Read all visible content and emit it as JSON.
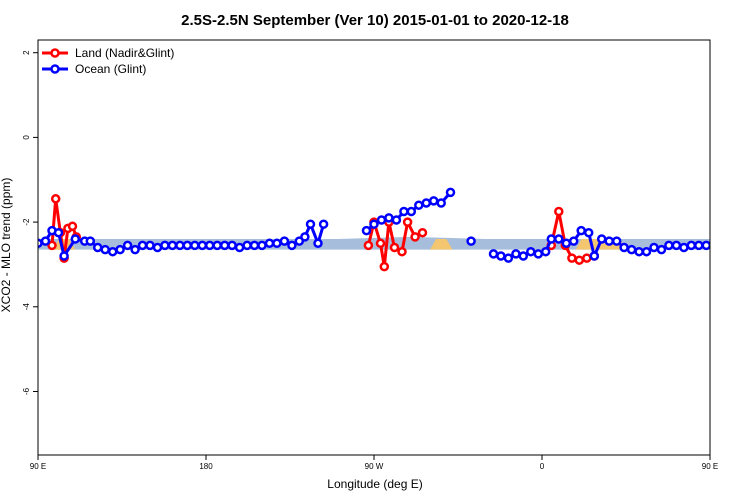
{
  "chart_data": {
    "type": "line",
    "title": "2.5S-2.5N September (Ver 10)   2015-01-01 to 2020-12-18",
    "xlabel": "Longitude (deg E)",
    "ylabel": "XCO2 - MLO trend (ppm)",
    "xlim": [
      90,
      450
    ],
    "ylim": [
      -7.5,
      2.3
    ],
    "x_ticks": [
      {
        "value": 90,
        "label": "90 E"
      },
      {
        "value": 180,
        "label": "180"
      },
      {
        "value": 270,
        "label": "90 W"
      },
      {
        "value": 360,
        "label": "0"
      },
      {
        "value": 450,
        "label": "90 E"
      },
      {
        "value": 540,
        "label": "180"
      }
    ],
    "y_ticks": [
      {
        "value": 2,
        "label": "2"
      },
      {
        "value": 0,
        "label": "0"
      },
      {
        "value": -2,
        "label": "-2"
      },
      {
        "value": -4,
        "label": "-4"
      },
      {
        "value": -6,
        "label": "-6"
      }
    ],
    "legend_position": "top-left",
    "band": {
      "name": "",
      "color": "#a6bddb",
      "points": [
        [
          90,
          -2.4,
          -2.65
        ],
        [
          100,
          -2.4,
          -2.65
        ],
        [
          150,
          -2.4,
          -2.65
        ],
        [
          200,
          -2.4,
          -2.65
        ],
        [
          250,
          -2.4,
          -2.65
        ],
        [
          290,
          -2.35,
          -2.65
        ],
        [
          330,
          -2.4,
          -2.65
        ],
        [
          360,
          -2.4,
          -2.65
        ],
        [
          400,
          -2.4,
          -2.65
        ],
        [
          450,
          -2.4,
          -2.65
        ],
        [
          500,
          -2.4,
          -2.65
        ],
        [
          540,
          -2.4,
          -2.65
        ]
      ]
    },
    "land_shading": {
      "color": "#f3c66f",
      "ranges": [
        [
          98,
          110
        ],
        [
          300,
          312
        ],
        [
          378,
          405
        ],
        [
          465,
          478
        ]
      ]
    },
    "series": [
      {
        "name": "Land (Nadir&Glint)",
        "color": "#ff0000",
        "segments": [
          [
            [
              97.5,
              -2.55
            ],
            [
              99.5,
              -1.45
            ],
            [
              102,
              -2.25
            ],
            [
              104,
              -2.85
            ],
            [
              106,
              -2.15
            ],
            [
              108.5,
              -2.1
            ],
            [
              110.5,
              -2.35
            ]
          ],
          [
            [
              267,
              -2.55
            ],
            [
              270,
              -2.0
            ],
            [
              273.5,
              -2.5
            ],
            [
              275.5,
              -3.05
            ],
            [
              278,
              -2.0
            ],
            [
              281,
              -2.6
            ],
            [
              285,
              -2.7
            ],
            [
              288,
              -2.0
            ],
            [
              292,
              -2.35
            ],
            [
              296,
              -2.25
            ]
          ],
          [
            [
              365,
              -2.55
            ],
            [
              369,
              -1.75
            ],
            [
              372.5,
              -2.55
            ],
            [
              376,
              -2.85
            ],
            [
              380,
              -2.9
            ],
            [
              384,
              -2.85
            ],
            [
              388,
              -2.8
            ]
          ],
          [
            [
              462,
              -2.5
            ],
            [
              464,
              -1.45
            ],
            [
              466.5,
              -2.25
            ],
            [
              468.5,
              -2.9
            ],
            [
              470.5,
              -2.15
            ],
            [
              473,
              -2.1
            ],
            [
              475,
              -2.35
            ]
          ]
        ]
      },
      {
        "name": "Ocean (Glint)",
        "color": "#0000ff",
        "segments": [
          [
            [
              90,
              -2.5
            ],
            [
              94,
              -2.45
            ],
            [
              97.5,
              -2.2
            ],
            [
              101,
              -2.25
            ],
            [
              104,
              -2.8
            ],
            [
              110,
              -2.4
            ],
            [
              115,
              -2.45
            ],
            [
              118,
              -2.45
            ],
            [
              122,
              -2.6
            ],
            [
              126,
              -2.65
            ],
            [
              130,
              -2.7
            ],
            [
              134,
              -2.65
            ],
            [
              138,
              -2.55
            ],
            [
              142,
              -2.65
            ],
            [
              146,
              -2.55
            ],
            [
              150,
              -2.55
            ],
            [
              154,
              -2.6
            ],
            [
              158,
              -2.55
            ],
            [
              162,
              -2.55
            ],
            [
              166,
              -2.55
            ],
            [
              170,
              -2.55
            ],
            [
              174,
              -2.55
            ],
            [
              178,
              -2.55
            ],
            [
              182,
              -2.55
            ],
            [
              186,
              -2.55
            ],
            [
              190,
              -2.55
            ],
            [
              194,
              -2.55
            ],
            [
              198,
              -2.6
            ],
            [
              202,
              -2.55
            ],
            [
              206,
              -2.55
            ],
            [
              210,
              -2.55
            ],
            [
              214,
              -2.5
            ],
            [
              218,
              -2.5
            ],
            [
              222,
              -2.45
            ],
            [
              226,
              -2.55
            ],
            [
              230,
              -2.45
            ],
            [
              233,
              -2.35
            ],
            [
              236,
              -2.05
            ],
            [
              240,
              -2.5
            ],
            [
              243,
              -2.05
            ]
          ],
          [
            [
              266,
              -2.2
            ],
            [
              270,
              -2.05
            ],
            [
              274,
              -1.95
            ],
            [
              278,
              -1.9
            ],
            [
              282,
              -1.95
            ],
            [
              286,
              -1.75
            ],
            [
              290,
              -1.75
            ],
            [
              294,
              -1.6
            ],
            [
              298,
              -1.55
            ],
            [
              302,
              -1.5
            ],
            [
              306,
              -1.55
            ],
            [
              311,
              -1.3
            ]
          ],
          [
            [
              322,
              -2.45
            ]
          ],
          [
            [
              334,
              -2.75
            ],
            [
              338,
              -2.8
            ],
            [
              342,
              -2.85
            ],
            [
              346,
              -2.75
            ],
            [
              350,
              -2.8
            ],
            [
              354,
              -2.7
            ],
            [
              358,
              -2.75
            ],
            [
              362,
              -2.7
            ],
            [
              365,
              -2.4
            ],
            [
              369,
              -2.4
            ],
            [
              373,
              -2.5
            ],
            [
              377,
              -2.45
            ],
            [
              381,
              -2.2
            ],
            [
              385,
              -2.25
            ],
            [
              388,
              -2.8
            ],
            [
              392,
              -2.4
            ],
            [
              396,
              -2.45
            ],
            [
              400,
              -2.45
            ],
            [
              404,
              -2.6
            ],
            [
              408,
              -2.65
            ],
            [
              412,
              -2.7
            ],
            [
              416,
              -2.7
            ],
            [
              420,
              -2.6
            ],
            [
              424,
              -2.65
            ],
            [
              428,
              -2.55
            ],
            [
              432,
              -2.55
            ],
            [
              436,
              -2.6
            ],
            [
              440,
              -2.55
            ],
            [
              444,
              -2.55
            ],
            [
              448,
              -2.55
            ]
          ]
        ]
      }
    ]
  }
}
